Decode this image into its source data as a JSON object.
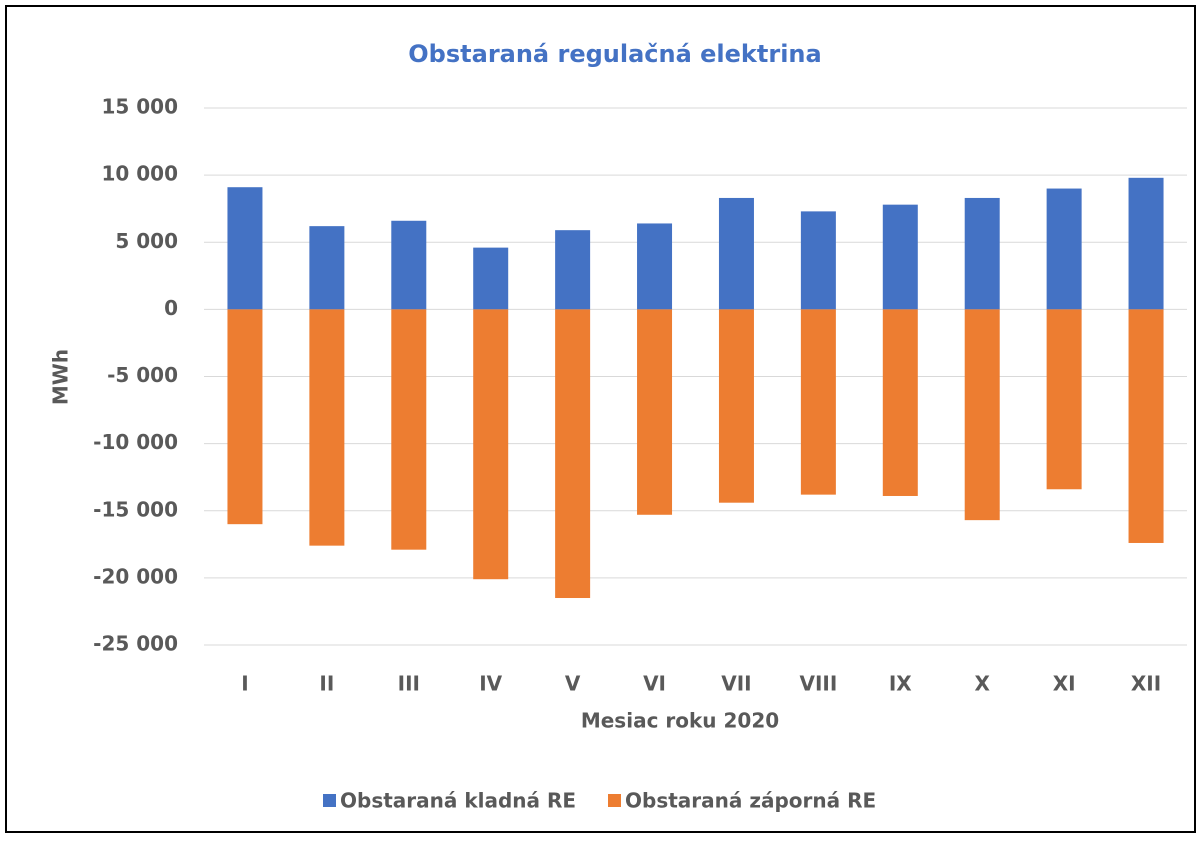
{
  "chart_data": {
    "type": "bar",
    "title": "Obstaraná regulačná elektrina",
    "x_label": "Mesiac roku 2020",
    "y_label": "MWh",
    "categories": [
      "I",
      "II",
      "III",
      "IV",
      "V",
      "VI",
      "VII",
      "VIII",
      "IX",
      "X",
      "XI",
      "XII"
    ],
    "series": [
      {
        "name": "Obstaraná kladná RE",
        "color": "#4472c4",
        "values": [
          9100,
          6200,
          6600,
          4600,
          5900,
          6400,
          8300,
          7300,
          7800,
          8300,
          9000,
          9800
        ]
      },
      {
        "name": "Obstaraná záporná RE",
        "color": "#ed7d31",
        "values": [
          -16000,
          -17600,
          -17900,
          -20100,
          -21500,
          -15300,
          -14400,
          -13800,
          -13900,
          -15700,
          -13400,
          -17400
        ]
      }
    ],
    "ylim": [
      -25000,
      15000
    ],
    "yticks": [
      {
        "value": -25000,
        "label": "-25 000"
      },
      {
        "value": -20000,
        "label": "-20 000"
      },
      {
        "value": -15000,
        "label": "-15 000"
      },
      {
        "value": -10000,
        "label": "-10 000"
      },
      {
        "value": -5000,
        "label": "-5 000"
      },
      0,
      {
        "value": 5000,
        "label": "5 000"
      },
      {
        "value": 10000,
        "label": "10 000"
      },
      {
        "value": 15000,
        "label": "15 000"
      }
    ],
    "grid": true,
    "legend": "bottom"
  }
}
